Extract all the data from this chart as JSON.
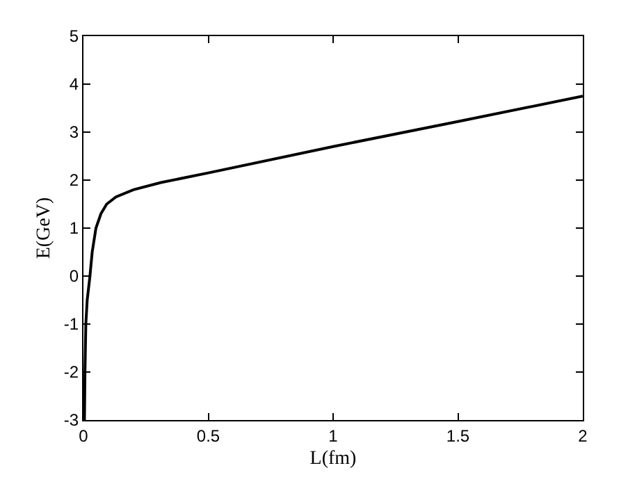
{
  "chart_data": {
    "type": "line",
    "xlabel": "L(fm)",
    "ylabel": "E(GeV)",
    "x": [
      0.004,
      0.006,
      0.0095,
      0.015,
      0.026,
      0.035,
      0.05,
      0.07,
      0.093,
      0.13,
      0.2,
      0.31,
      0.5,
      1,
      1.5,
      2
    ],
    "series": [
      {
        "color": "#000000",
        "values": [
          -3,
          -2,
          -1,
          -0.5,
          0,
          0.5,
          1,
          1.3,
          1.5,
          1.65,
          1.8,
          1.95,
          2.15,
          2.7,
          3.22,
          3.75
        ]
      }
    ],
    "xlim": [
      0,
      2
    ],
    "xticks": [
      0,
      0.5,
      1,
      1.5,
      2
    ],
    "ylim": [
      -3,
      5
    ],
    "yticks": [
      -3,
      -2,
      -1,
      0,
      1,
      2,
      3,
      4,
      5
    ],
    "marker": "none",
    "line_style": "solid"
  }
}
